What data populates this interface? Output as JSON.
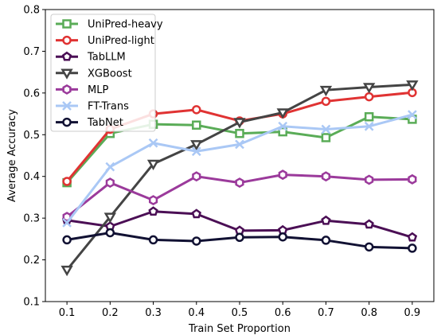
{
  "chart_data": {
    "type": "line",
    "title": "",
    "xlabel": "Train Set Proportion",
    "ylabel": "Average Accuracy",
    "x": [
      0.1,
      0.2,
      0.3,
      0.4,
      0.5,
      0.6,
      0.7,
      0.8,
      0.9
    ],
    "xlim": [
      0.05,
      0.95
    ],
    "ylim": [
      0.1,
      0.8
    ],
    "xticks": [
      "0.1",
      "0.2",
      "0.3",
      "0.4",
      "0.5",
      "0.6",
      "0.7",
      "0.8",
      "0.9"
    ],
    "yticks": [
      "0.1",
      "0.2",
      "0.3",
      "0.4",
      "0.5",
      "0.6",
      "0.7",
      "0.8"
    ],
    "grid": false,
    "legend_position": "top-left",
    "series": [
      {
        "name": "UniPred-heavy",
        "color": "#5aac57",
        "marker": "square",
        "values": [
          0.385,
          0.503,
          0.525,
          0.523,
          0.503,
          0.507,
          0.493,
          0.543,
          0.537
        ]
      },
      {
        "name": "UniPred-light",
        "color": "#e03333",
        "marker": "circle",
        "values": [
          0.388,
          0.513,
          0.55,
          0.56,
          0.533,
          0.55,
          0.58,
          0.591,
          0.601
        ]
      },
      {
        "name": "TabLLM",
        "color": "#4b0f55",
        "marker": "pentagon",
        "values": [
          0.295,
          0.28,
          0.316,
          0.31,
          0.27,
          0.271,
          0.294,
          0.285,
          0.254
        ]
      },
      {
        "name": "XGBoost",
        "color": "#444444",
        "marker": "triangle-down",
        "values": [
          0.176,
          0.303,
          0.43,
          0.477,
          0.53,
          0.553,
          0.607,
          0.614,
          0.62
        ]
      },
      {
        "name": "MLP",
        "color": "#9b3a9b",
        "marker": "hexagon",
        "values": [
          0.303,
          0.385,
          0.343,
          0.4,
          0.385,
          0.404,
          0.4,
          0.392,
          0.393
        ]
      },
      {
        "name": "FT-Trans",
        "color": "#aac8f5",
        "marker": "x",
        "values": [
          0.289,
          0.423,
          0.48,
          0.46,
          0.477,
          0.52,
          0.513,
          0.52,
          0.548
        ]
      },
      {
        "name": "TabNet",
        "color": "#111133",
        "marker": "circle",
        "values": [
          0.248,
          0.265,
          0.248,
          0.245,
          0.254,
          0.255,
          0.247,
          0.231,
          0.228
        ]
      }
    ]
  }
}
